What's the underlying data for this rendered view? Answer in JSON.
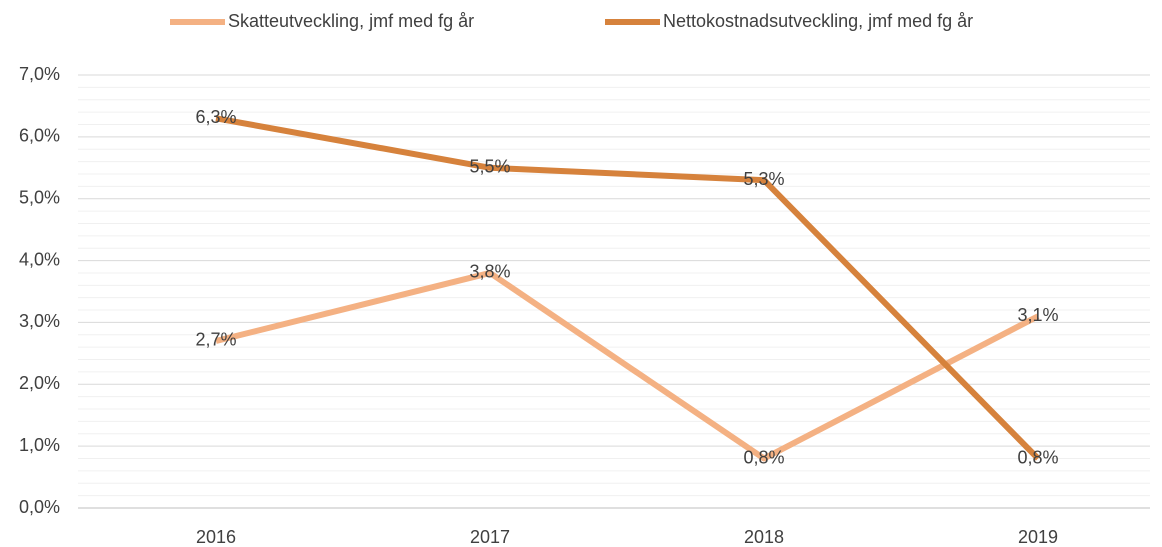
{
  "chart_data": {
    "type": "line",
    "categories": [
      "2016",
      "2017",
      "2018",
      "2019"
    ],
    "series": [
      {
        "name": "Skatteutveckling, jmf med fg år",
        "color": "#f4b183",
        "values": [
          2.7,
          3.8,
          0.8,
          3.1
        ],
        "value_labels": [
          "2,7%",
          "3,8%",
          "0,8%",
          "3,1%"
        ]
      },
      {
        "name": "Nettokostnadsutveckling, jmf med fg år",
        "color": "#d6823c",
        "values": [
          6.3,
          5.5,
          5.3,
          0.8
        ],
        "value_labels": [
          "6,3%",
          "5,5%",
          "5,3%",
          "0,8%"
        ]
      }
    ],
    "ylim": [
      0,
      7
    ],
    "yticks": [
      {
        "value": 0,
        "label": "0,0%"
      },
      {
        "value": 1,
        "label": "1,0%"
      },
      {
        "value": 2,
        "label": "2,0%"
      },
      {
        "value": 3,
        "label": "3,0%"
      },
      {
        "value": 4,
        "label": "4,0%"
      },
      {
        "value": 5,
        "label": "5,0%"
      },
      {
        "value": 6,
        "label": "6,0%"
      },
      {
        "value": 7,
        "label": "7,0%"
      }
    ],
    "minor_yticks": [
      0.2,
      0.4,
      0.6,
      0.8,
      1.2,
      1.4,
      1.6,
      1.8,
      2.2,
      2.4,
      2.6,
      2.8,
      3.2,
      3.4,
      3.6,
      3.8,
      4.2,
      4.4,
      4.6,
      4.8,
      5.2,
      5.4,
      5.6,
      5.8,
      6.2,
      6.4,
      6.6,
      6.8
    ],
    "grid": true,
    "legend": "top"
  }
}
